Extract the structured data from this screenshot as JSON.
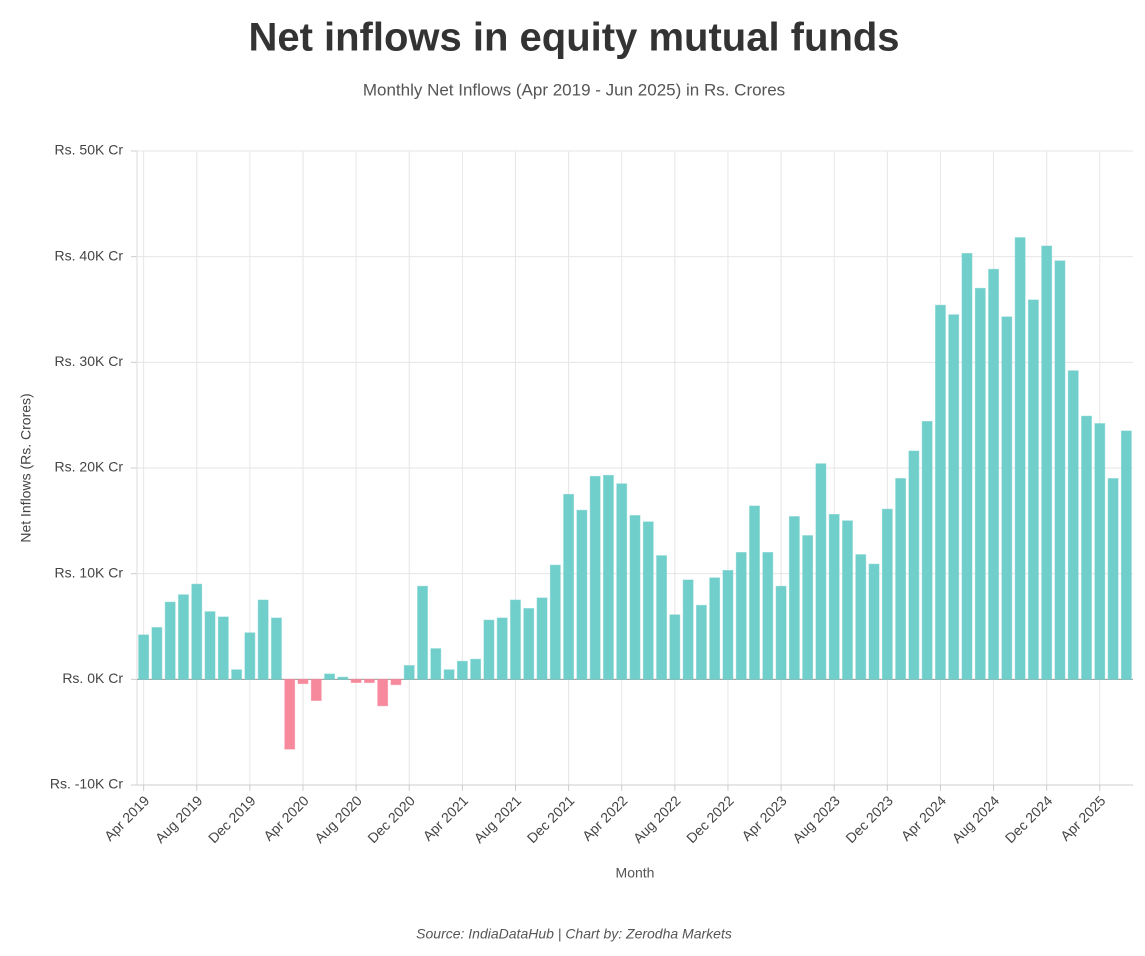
{
  "chart_data": {
    "type": "bar",
    "title": "Net inflows in equity mutual funds",
    "subtitle": "Monthly Net Inflows (Apr 2019 - Jun 2025) in Rs. Crores",
    "x_label": "Month",
    "y_label": "Net Inflows (Rs. Crores)",
    "source": "Source: IndiaDataHub | Chart by: Zerodha Markets",
    "color": "#70cecb",
    "negative_color": "#f7899d",
    "grid": true,
    "ylim": [
      -10000,
      50000
    ],
    "yticks": [
      {
        "value": -10000,
        "label": "Rs. -10K Cr"
      },
      {
        "value": 0,
        "label": "Rs. 0K Cr"
      },
      {
        "value": 10000,
        "label": "Rs. 10K Cr"
      },
      {
        "value": 20000,
        "label": "Rs. 20K Cr"
      },
      {
        "value": 30000,
        "label": "Rs. 30K Cr"
      },
      {
        "value": 40000,
        "label": "Rs. 40K Cr"
      },
      {
        "value": 50000,
        "label": "Rs. 50K Cr"
      }
    ],
    "categories": [
      "Apr 2019",
      null,
      null,
      null,
      "Aug 2019",
      null,
      null,
      null,
      "Dec 2019",
      null,
      null,
      null,
      "Apr 2020",
      null,
      null,
      null,
      "Aug 2020",
      null,
      null,
      null,
      "Dec 2020",
      null,
      null,
      null,
      "Apr 2021",
      null,
      null,
      null,
      "Aug 2021",
      null,
      null,
      null,
      "Dec 2021",
      null,
      null,
      null,
      "Apr 2022",
      null,
      null,
      null,
      "Aug 2022",
      null,
      null,
      null,
      "Dec 2022",
      null,
      null,
      null,
      "Apr 2023",
      null,
      null,
      null,
      "Aug 2023",
      null,
      null,
      null,
      "Dec 2023",
      null,
      null,
      null,
      "Apr 2024",
      null,
      null,
      null,
      "Aug 2024",
      null,
      null,
      null,
      "Dec 2024",
      null,
      null,
      null,
      "Apr 2025",
      null,
      null
    ],
    "values": [
      4200,
      4900,
      7300,
      8000,
      9000,
      6400,
      5900,
      900,
      4400,
      7500,
      5800,
      -6600,
      -400,
      -2000,
      500,
      200,
      -300,
      -300,
      -2500,
      -500,
      1300,
      8800,
      2900,
      900,
      1700,
      1900,
      5600,
      5800,
      7500,
      6700,
      7700,
      10800,
      17500,
      16000,
      19200,
      19300,
      18500,
      15500,
      14900,
      11700,
      6100,
      9400,
      7000,
      9600,
      10300,
      12000,
      16400,
      12000,
      8800,
      15400,
      13600,
      20400,
      15600,
      15000,
      11800,
      10900,
      16100,
      19000,
      21600,
      24400,
      35400,
      34500,
      40300,
      37000,
      38800,
      34300,
      41800,
      35900,
      41000,
      39600,
      29200,
      24900,
      24200,
      19000,
      23500
    ]
  }
}
